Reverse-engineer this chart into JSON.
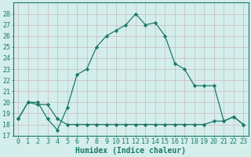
{
  "line1_x": [
    0,
    1,
    2,
    3,
    4,
    5,
    6,
    7,
    8,
    9,
    10,
    11,
    12,
    13,
    14,
    15,
    16,
    17,
    18,
    19,
    20,
    21,
    22,
    23
  ],
  "line1_y": [
    18.5,
    20.0,
    20.0,
    18.5,
    17.5,
    19.5,
    22.5,
    23.0,
    25.0,
    26.0,
    26.5,
    27.0,
    28.0,
    27.0,
    27.2,
    26.0,
    23.5,
    23.0,
    21.5,
    21.5,
    21.5,
    18.3,
    18.7,
    18.0
  ],
  "line2_x": [
    0,
    1,
    2,
    3,
    4,
    5,
    6,
    7,
    8,
    9,
    10,
    11,
    12,
    13,
    14,
    15,
    16,
    17,
    18,
    19,
    20,
    21,
    22,
    23
  ],
  "line2_y": [
    18.5,
    20.0,
    19.8,
    19.8,
    18.5,
    18.0,
    18.0,
    18.0,
    18.0,
    18.0,
    18.0,
    18.0,
    18.0,
    18.0,
    18.0,
    18.0,
    18.0,
    18.0,
    18.0,
    18.0,
    18.3,
    18.3,
    18.7,
    18.0
  ],
  "color": "#1a7a6a",
  "bg_color": "#d4eeeb",
  "grid_color": "#c8ddd8",
  "xlabel": "Humidex (Indice chaleur)",
  "ylim": [
    17,
    29
  ],
  "xlim": [
    -0.5,
    23.5
  ],
  "yticks": [
    17,
    18,
    19,
    20,
    21,
    22,
    23,
    24,
    25,
    26,
    27,
    28
  ],
  "xticks": [
    0,
    1,
    2,
    3,
    4,
    5,
    6,
    7,
    8,
    9,
    10,
    11,
    12,
    13,
    14,
    15,
    16,
    17,
    18,
    19,
    20,
    21,
    22,
    23
  ],
  "marker": "D",
  "markersize": 2.2,
  "linewidth": 0.9,
  "xlabel_fontsize": 7,
  "tick_fontsize": 6
}
